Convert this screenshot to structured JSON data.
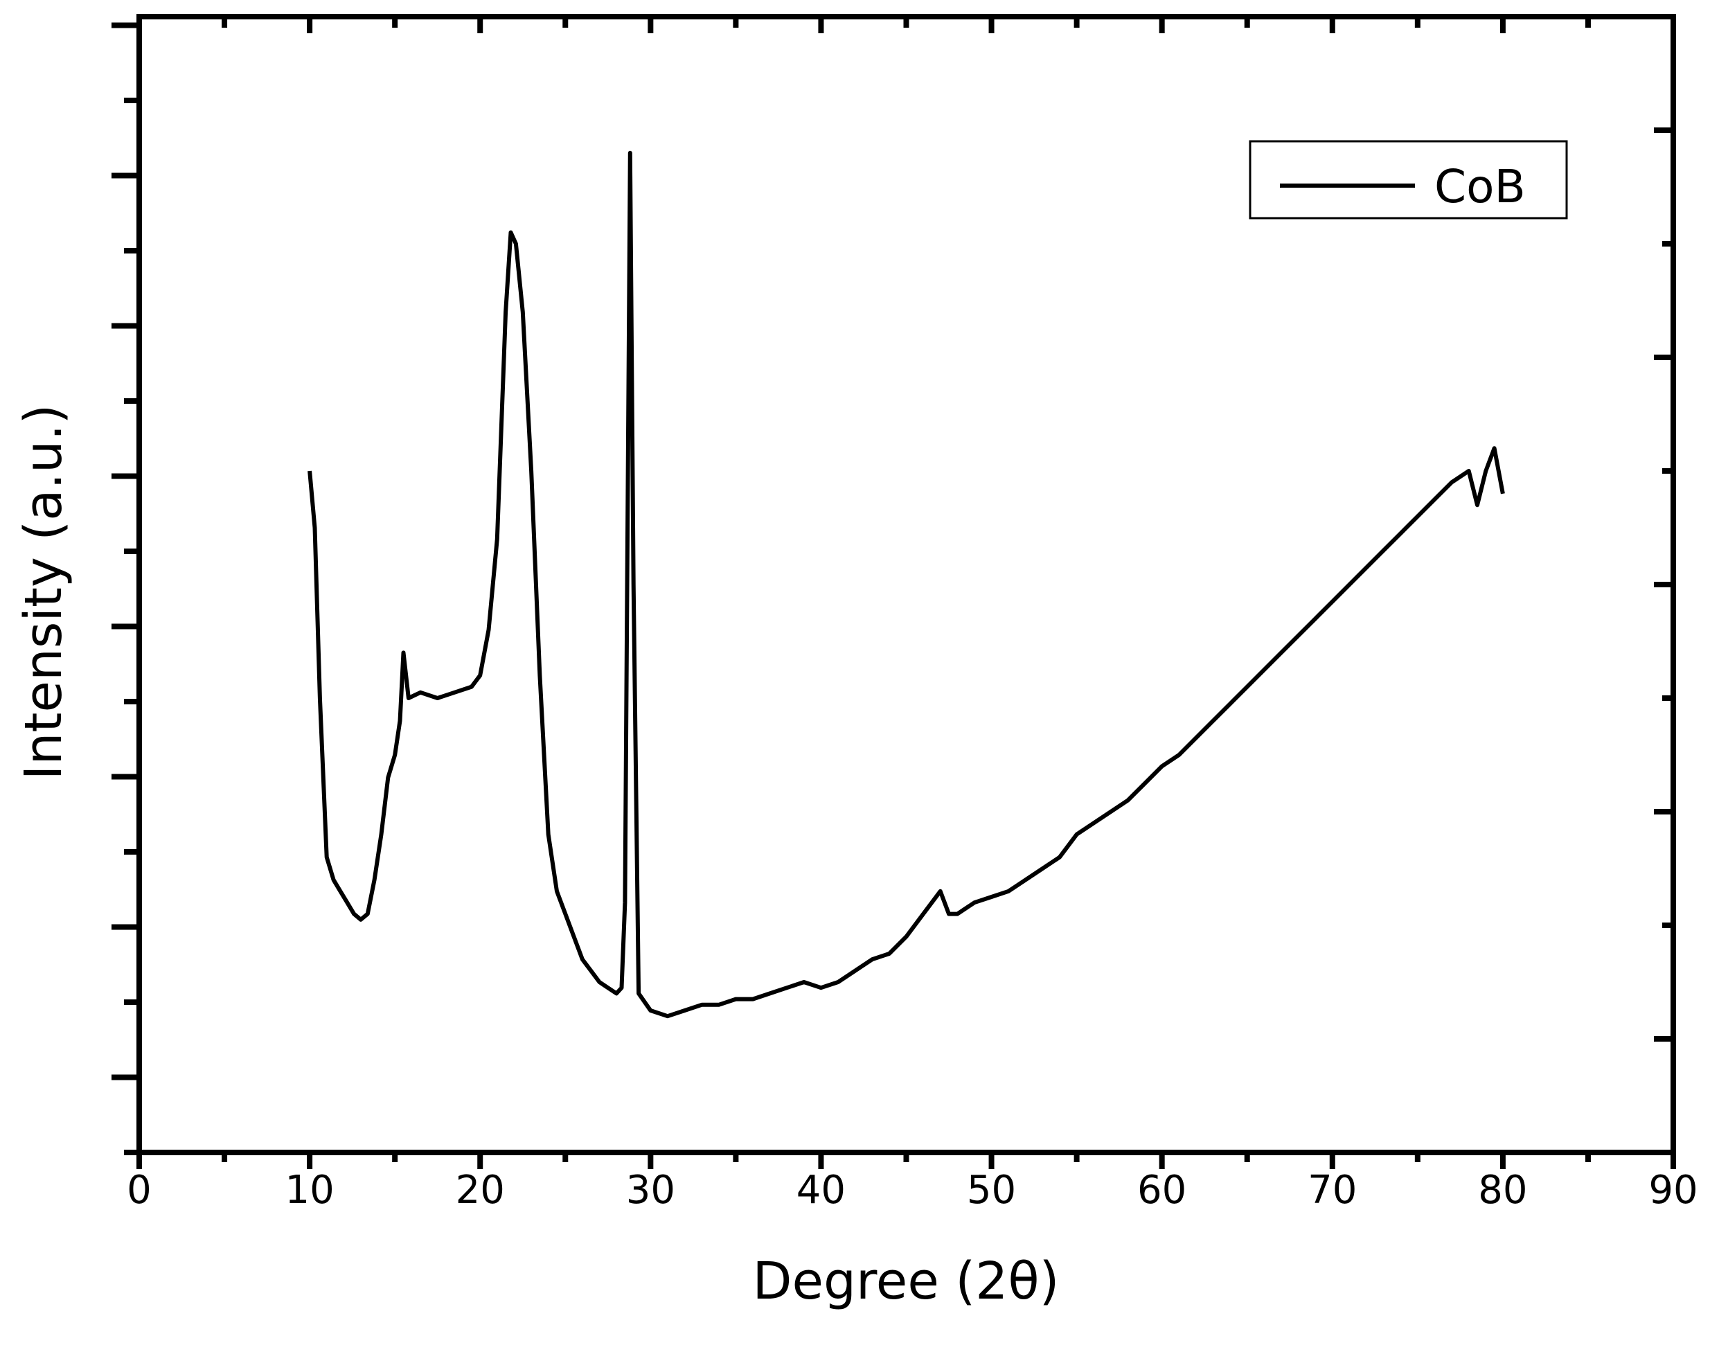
{
  "chart_data": {
    "type": "line",
    "title": "",
    "xlabel": "Degree (2θ)",
    "ylabel": "Intensity (a.u.)",
    "xlim": [
      0,
      90
    ],
    "ylim": [
      0,
      100
    ],
    "x_ticks": [
      0,
      10,
      20,
      30,
      40,
      50,
      60,
      70,
      80,
      90
    ],
    "x_tick_labels": [
      "0",
      "10",
      "20",
      "30",
      "40",
      "50",
      "60",
      "70",
      "80",
      "90"
    ],
    "y_tick_labels_shown": false,
    "grid": false,
    "legend": {
      "position": "top-right",
      "entries": [
        "CoB"
      ]
    },
    "series": [
      {
        "name": "CoB",
        "color": "#000000",
        "points": [
          [
            10.0,
            60
          ],
          [
            10.3,
            55
          ],
          [
            10.6,
            40
          ],
          [
            11.0,
            26
          ],
          [
            11.4,
            24
          ],
          [
            11.8,
            23
          ],
          [
            12.2,
            22
          ],
          [
            12.6,
            21
          ],
          [
            13.0,
            20.5
          ],
          [
            13.4,
            21
          ],
          [
            13.8,
            24
          ],
          [
            14.2,
            28
          ],
          [
            14.6,
            33
          ],
          [
            15.0,
            35
          ],
          [
            15.3,
            38
          ],
          [
            15.5,
            44
          ],
          [
            15.8,
            40
          ],
          [
            16.5,
            40.5
          ],
          [
            17.5,
            40
          ],
          [
            18.5,
            40.5
          ],
          [
            19.5,
            41
          ],
          [
            20.0,
            42
          ],
          [
            20.5,
            46
          ],
          [
            21.0,
            54
          ],
          [
            21.5,
            74
          ],
          [
            21.8,
            81
          ],
          [
            22.1,
            80
          ],
          [
            22.5,
            74
          ],
          [
            23.0,
            60
          ],
          [
            23.5,
            42
          ],
          [
            24.0,
            28
          ],
          [
            24.5,
            23
          ],
          [
            25.0,
            21
          ],
          [
            25.5,
            19
          ],
          [
            26.0,
            17
          ],
          [
            26.5,
            16
          ],
          [
            27.0,
            15
          ],
          [
            27.5,
            14.5
          ],
          [
            28.0,
            14
          ],
          [
            28.3,
            14.5
          ],
          [
            28.5,
            22
          ],
          [
            28.8,
            88
          ],
          [
            29.0,
            50
          ],
          [
            29.3,
            14
          ],
          [
            30.0,
            12.5
          ],
          [
            31.0,
            12
          ],
          [
            32.0,
            12.5
          ],
          [
            33.0,
            13
          ],
          [
            34.0,
            13
          ],
          [
            35.0,
            13.5
          ],
          [
            36.0,
            13.5
          ],
          [
            37.0,
            14
          ],
          [
            38.0,
            14.5
          ],
          [
            39.0,
            15
          ],
          [
            40.0,
            14.5
          ],
          [
            41.0,
            15
          ],
          [
            42.0,
            16
          ],
          [
            43.0,
            17
          ],
          [
            44.0,
            17.5
          ],
          [
            45.0,
            19
          ],
          [
            46.0,
            21
          ],
          [
            47.0,
            23
          ],
          [
            47.5,
            21
          ],
          [
            48.0,
            21
          ],
          [
            49.0,
            22
          ],
          [
            50.0,
            22.5
          ],
          [
            51.0,
            23
          ],
          [
            52.0,
            24
          ],
          [
            53.0,
            25
          ],
          [
            54.0,
            26
          ],
          [
            55.0,
            28
          ],
          [
            56.0,
            29
          ],
          [
            57.0,
            30
          ],
          [
            58.0,
            31
          ],
          [
            59.0,
            32.5
          ],
          [
            60.0,
            34
          ],
          [
            61.0,
            35
          ],
          [
            62.0,
            36.5
          ],
          [
            63.0,
            38
          ],
          [
            64.0,
            39.5
          ],
          [
            65.0,
            41
          ],
          [
            66.0,
            42.5
          ],
          [
            67.0,
            44
          ],
          [
            68.0,
            45.5
          ],
          [
            69.0,
            47
          ],
          [
            70.0,
            48.5
          ],
          [
            71.0,
            50
          ],
          [
            72.0,
            51.5
          ],
          [
            73.0,
            53
          ],
          [
            74.0,
            54.5
          ],
          [
            75.0,
            56
          ],
          [
            76.0,
            57.5
          ],
          [
            77.0,
            59
          ],
          [
            78.0,
            60
          ],
          [
            78.5,
            57
          ],
          [
            79.0,
            60
          ],
          [
            79.5,
            62
          ],
          [
            80.0,
            58
          ]
        ]
      }
    ]
  }
}
